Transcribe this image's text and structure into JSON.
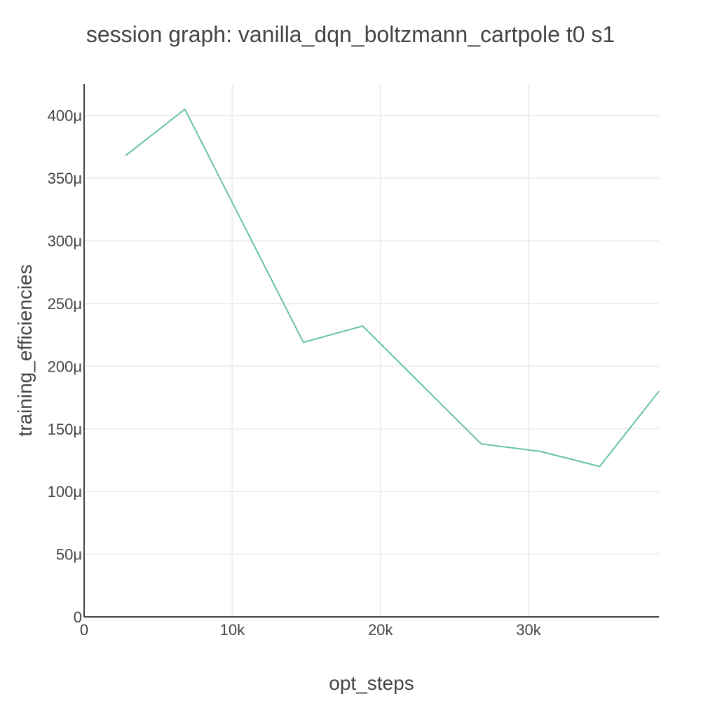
{
  "chart_data": {
    "type": "line",
    "title": "session graph: vanilla_dqn_boltzmann_cartpole t0 s1",
    "xlabel": "opt_steps",
    "ylabel": "training_efficiencies",
    "xlim": [
      0,
      38800
    ],
    "ylim": [
      0,
      0.000425
    ],
    "x_ticks": [
      {
        "value": 0,
        "label": "0"
      },
      {
        "value": 10000,
        "label": "10k"
      },
      {
        "value": 20000,
        "label": "20k"
      },
      {
        "value": 30000,
        "label": "30k"
      }
    ],
    "y_ticks": [
      {
        "value": 0,
        "label": "0"
      },
      {
        "value": 5e-05,
        "label": "50μ"
      },
      {
        "value": 0.0001,
        "label": "100μ"
      },
      {
        "value": 0.00015,
        "label": "150μ"
      },
      {
        "value": 0.0002,
        "label": "200μ"
      },
      {
        "value": 0.00025,
        "label": "250μ"
      },
      {
        "value": 0.0003,
        "label": "300μ"
      },
      {
        "value": 0.00035,
        "label": "350μ"
      },
      {
        "value": 0.0004,
        "label": "400μ"
      }
    ],
    "grid": true,
    "legend": "none",
    "series": [
      {
        "color": "#66c2a5",
        "x": [
          2800,
          6800,
          14800,
          18800,
          26800,
          30800,
          34800,
          38800
        ],
        "y": [
          0.000368,
          0.000405,
          0.000219,
          0.000232,
          0.000138,
          0.000132,
          0.00012,
          0.00018
        ]
      }
    ]
  }
}
